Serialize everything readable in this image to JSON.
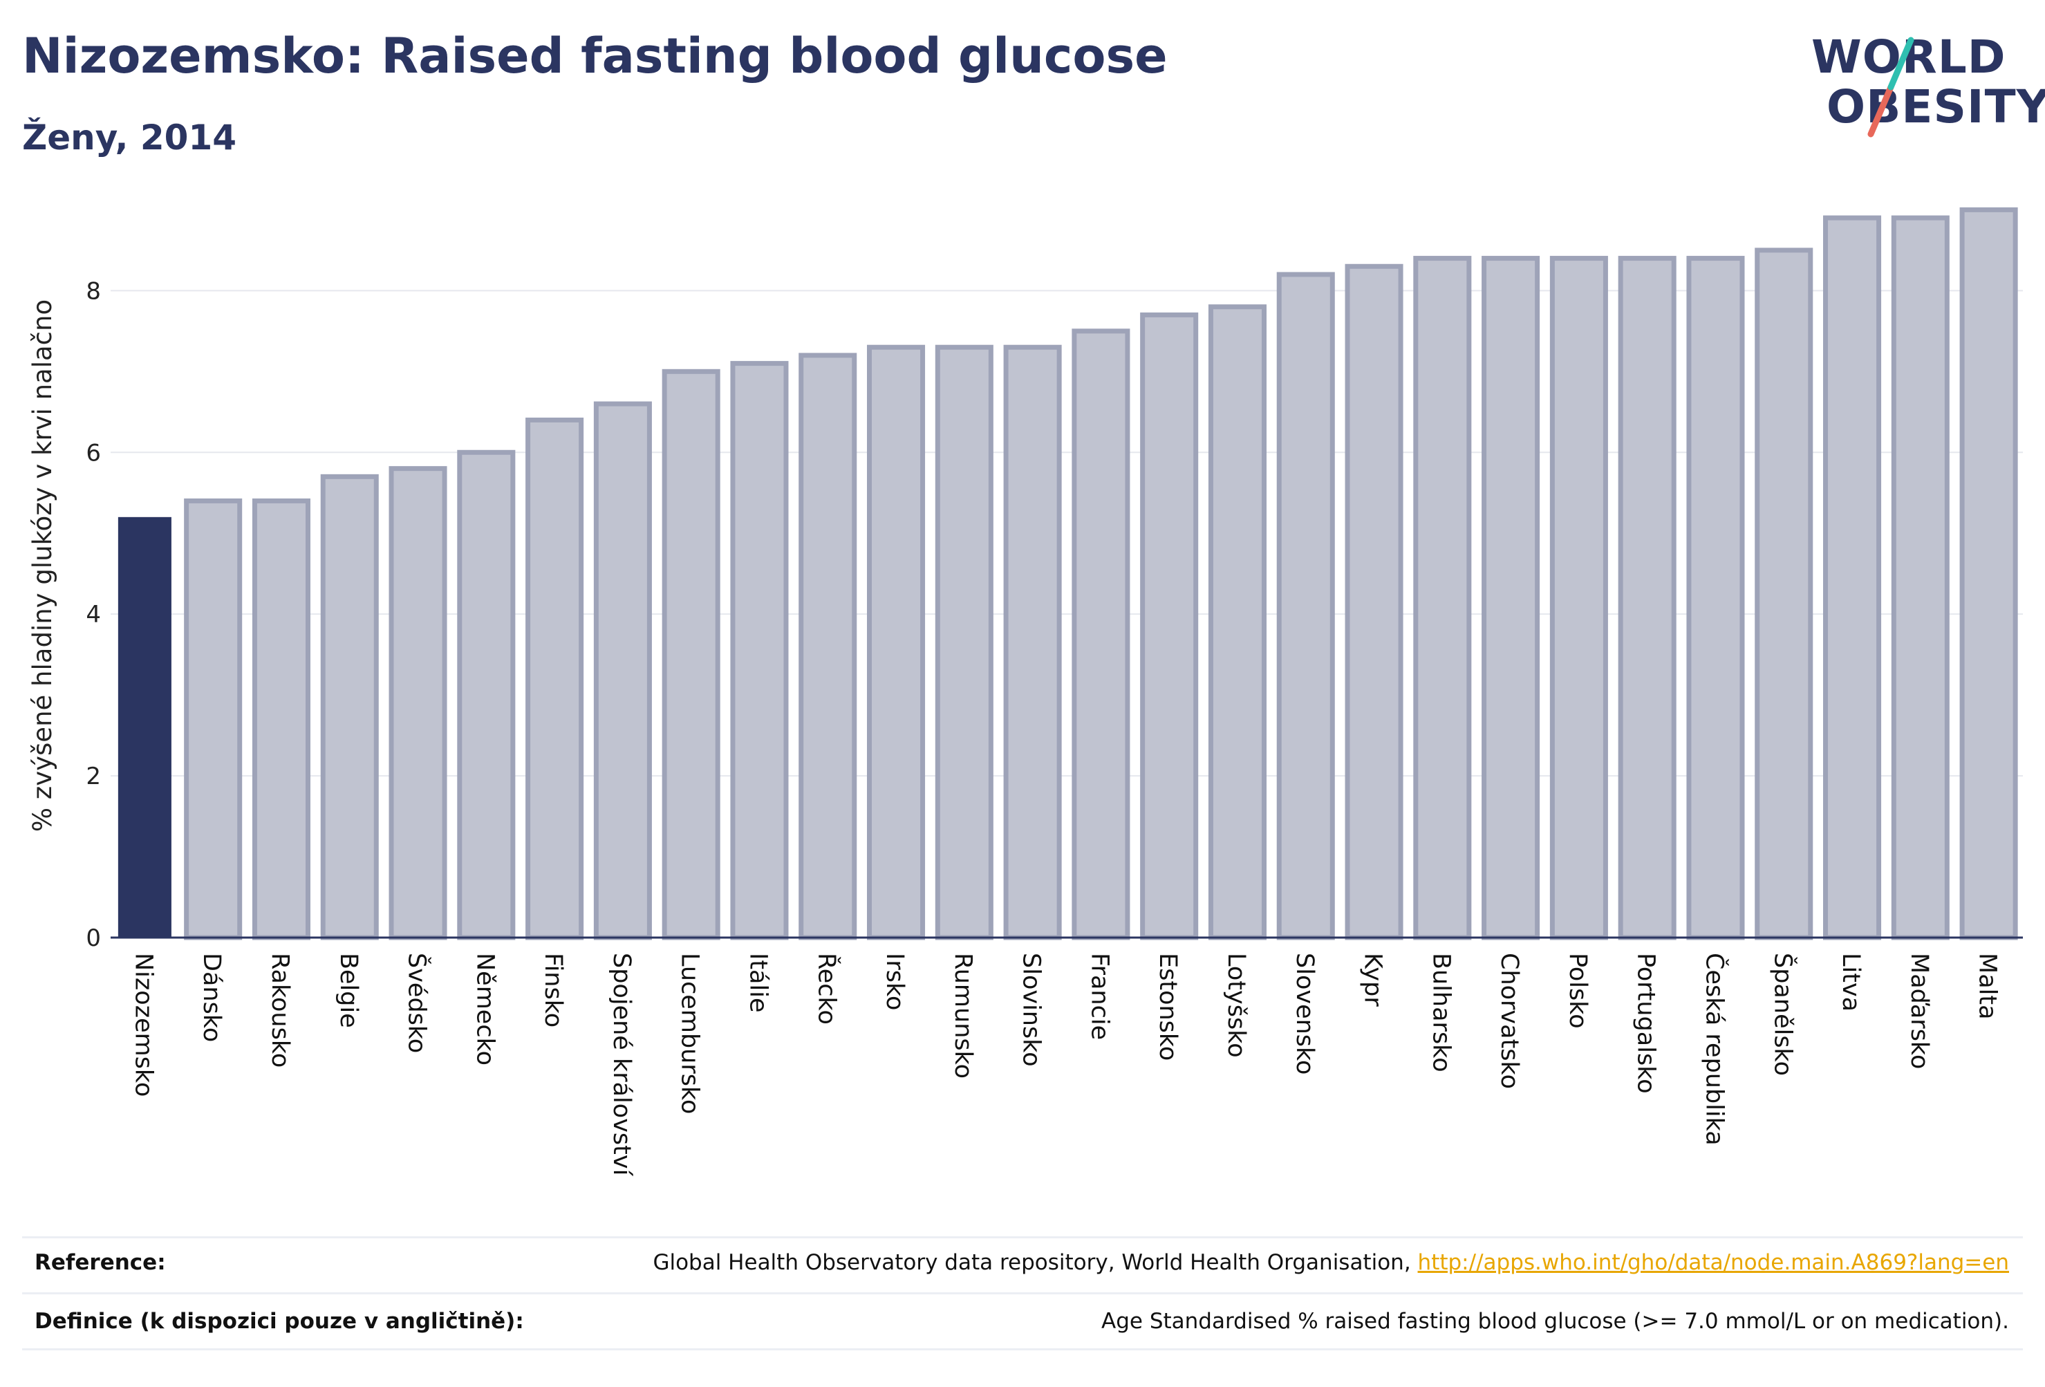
{
  "header": {
    "title": "Nizozemsko: Raised fasting blood glucose",
    "subtitle": "Ženy, 2014"
  },
  "logo": {
    "line1": "WORLD",
    "line2": "OBESITY",
    "accent_colors": [
      "#2fbfb0",
      "#e8685a"
    ]
  },
  "chart_data": {
    "type": "bar",
    "title": "Nizozemsko: Raised fasting blood glucose",
    "subtitle": "Ženy, 2014",
    "xlabel": "",
    "ylabel": "% zvýšené hladiny glukózy v krvi nalačno",
    "ylim": [
      0,
      9.2
    ],
    "yticks": [
      0,
      2,
      4,
      6,
      8
    ],
    "grid": true,
    "highlight_category": "Nizozemsko",
    "colors": {
      "highlight": "#2b3561",
      "other_fill": "#c0c3d0",
      "other_stroke": "#9ea3b8",
      "grid": "#e6e8ee",
      "axis": "#2b3561"
    },
    "categories": [
      "Nizozemsko",
      "Dánsko",
      "Rakousko",
      "Belgie",
      "Švédsko",
      "Německo",
      "Finsko",
      "Spojené království",
      "Lucembursko",
      "Itálie",
      "Řecko",
      "Irsko",
      "Rumunsko",
      "Slovinsko",
      "Francie",
      "Estonsko",
      "Lotyšsko",
      "Slovensko",
      "Kypr",
      "Bulharsko",
      "Chorvatsko",
      "Polsko",
      "Portugalsko",
      "Česká republika",
      "Španělsko",
      "Litva",
      "Maďarsko",
      "Malta"
    ],
    "values": [
      5.2,
      5.4,
      5.4,
      5.7,
      5.8,
      6.0,
      6.4,
      6.6,
      7.0,
      7.1,
      7.2,
      7.3,
      7.3,
      7.3,
      7.5,
      7.7,
      7.8,
      8.2,
      8.3,
      8.4,
      8.4,
      8.4,
      8.4,
      8.4,
      8.5,
      8.9,
      8.9,
      9.0
    ]
  },
  "footer": {
    "reference_label": "Reference:",
    "reference_text": "Global Health Observatory data repository, World Health Organisation, ",
    "reference_link": "http://apps.who.int/gho/data/node.main.A869?lang=en",
    "definition_label": "Definice (k dispozici pouze v angličtině):",
    "definition_text": "Age Standardised % raised fasting blood glucose (>= 7.0 mmol/L or on medication)."
  }
}
